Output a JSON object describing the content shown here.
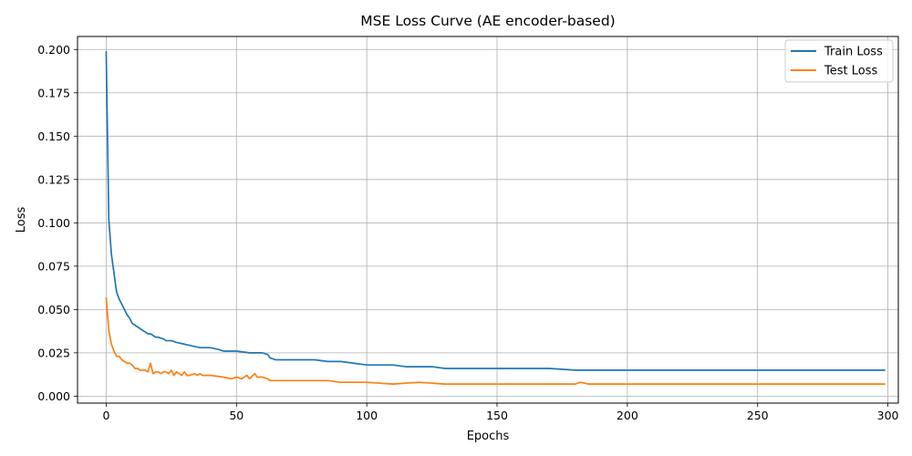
{
  "chart_data": {
    "type": "line",
    "title": "MSE Loss Curve (AE encoder-based)",
    "xlabel": "Epochs",
    "ylabel": "Loss",
    "xlim": [
      -11,
      304
    ],
    "ylim": [
      -0.004,
      0.2075
    ],
    "grid": true,
    "legend_position": "top-right",
    "x_ticks": [
      0,
      50,
      100,
      150,
      200,
      250,
      300
    ],
    "x_tick_labels": [
      "0",
      "50",
      "100",
      "150",
      "200",
      "250",
      "300"
    ],
    "y_ticks": [
      0.0,
      0.025,
      0.05,
      0.075,
      0.1,
      0.125,
      0.15,
      0.175,
      0.2
    ],
    "y_tick_labels": [
      "0.000",
      "0.025",
      "0.050",
      "0.075",
      "0.100",
      "0.125",
      "0.150",
      "0.175",
      "0.200"
    ],
    "series": [
      {
        "name": "Train Loss",
        "color": "#1f77b4",
        "x": [
          0,
          1,
          2,
          3,
          4,
          5,
          6,
          7,
          8,
          9,
          10,
          11,
          12,
          13,
          14,
          15,
          16,
          17,
          18,
          19,
          20,
          22,
          23,
          25,
          27,
          30,
          33,
          36,
          40,
          43,
          45,
          50,
          55,
          60,
          62,
          63,
          65,
          70,
          75,
          80,
          85,
          90,
          95,
          100,
          105,
          110,
          115,
          120,
          125,
          130,
          140,
          150,
          160,
          170,
          180,
          190,
          200,
          210,
          220,
          230,
          240,
          250,
          260,
          270,
          280,
          290,
          299
        ],
        "values": [
          0.199,
          0.102,
          0.082,
          0.071,
          0.06,
          0.056,
          0.053,
          0.05,
          0.047,
          0.045,
          0.042,
          0.041,
          0.04,
          0.039,
          0.038,
          0.037,
          0.036,
          0.036,
          0.035,
          0.034,
          0.034,
          0.033,
          0.032,
          0.032,
          0.031,
          0.03,
          0.029,
          0.028,
          0.028,
          0.027,
          0.026,
          0.026,
          0.025,
          0.025,
          0.024,
          0.022,
          0.021,
          0.021,
          0.021,
          0.021,
          0.02,
          0.02,
          0.019,
          0.018,
          0.018,
          0.018,
          0.017,
          0.017,
          0.017,
          0.016,
          0.016,
          0.016,
          0.016,
          0.016,
          0.015,
          0.015,
          0.015,
          0.015,
          0.015,
          0.015,
          0.015,
          0.015,
          0.015,
          0.015,
          0.015,
          0.015,
          0.015
        ]
      },
      {
        "name": "Test Loss",
        "color": "#ff7f0e",
        "x": [
          0,
          1,
          2,
          3,
          4,
          5,
          6,
          7,
          8,
          9,
          10,
          11,
          12,
          13,
          14,
          15,
          16,
          17,
          18,
          19,
          20,
          21,
          22,
          23,
          24,
          25,
          26,
          27,
          28,
          29,
          30,
          31,
          32,
          34,
          35,
          36,
          37,
          40,
          45,
          48,
          50,
          52,
          54,
          55,
          57,
          58,
          60,
          62,
          63,
          65,
          70,
          75,
          78,
          80,
          85,
          90,
          95,
          100,
          110,
          120,
          130,
          140,
          150,
          160,
          170,
          180,
          182,
          185,
          190,
          200,
          210,
          220,
          230,
          240,
          250,
          260,
          270,
          280,
          290,
          299
        ],
        "values": [
          0.057,
          0.038,
          0.03,
          0.026,
          0.023,
          0.023,
          0.021,
          0.02,
          0.019,
          0.019,
          0.018,
          0.016,
          0.016,
          0.015,
          0.015,
          0.015,
          0.014,
          0.019,
          0.013,
          0.014,
          0.014,
          0.013,
          0.014,
          0.014,
          0.013,
          0.015,
          0.012,
          0.014,
          0.013,
          0.012,
          0.014,
          0.012,
          0.012,
          0.013,
          0.012,
          0.013,
          0.012,
          0.012,
          0.011,
          0.01,
          0.011,
          0.01,
          0.012,
          0.01,
          0.013,
          0.011,
          0.011,
          0.01,
          0.009,
          0.009,
          0.009,
          0.009,
          0.009,
          0.009,
          0.009,
          0.008,
          0.008,
          0.008,
          0.007,
          0.008,
          0.007,
          0.007,
          0.007,
          0.007,
          0.007,
          0.007,
          0.008,
          0.007,
          0.007,
          0.007,
          0.007,
          0.007,
          0.007,
          0.007,
          0.007,
          0.007,
          0.007,
          0.007,
          0.007,
          0.007
        ]
      }
    ]
  }
}
